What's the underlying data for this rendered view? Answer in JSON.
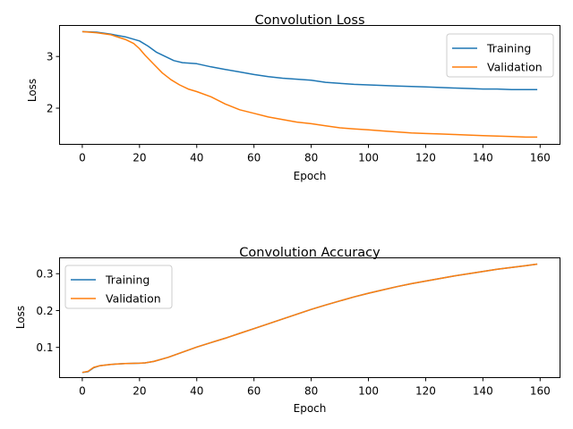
{
  "chart_data": [
    {
      "type": "line",
      "title": "Convolution Loss",
      "xlabel": "Epoch",
      "ylabel": "Loss",
      "xlim": [
        -7.95,
        166.95
      ],
      "ylim": [
        1.3,
        3.6
      ],
      "xticks": [
        0,
        20,
        40,
        60,
        80,
        100,
        120,
        140,
        160
      ],
      "yticks": [
        2,
        3
      ],
      "grid": false,
      "legend": "top-right",
      "series": [
        {
          "name": "Training",
          "color": "#1f77b4",
          "points": [
            [
              0,
              3.48
            ],
            [
              5,
              3.47
            ],
            [
              10,
              3.43
            ],
            [
              15,
              3.38
            ],
            [
              20,
              3.3
            ],
            [
              23,
              3.2
            ],
            [
              26,
              3.08
            ],
            [
              29,
              3.0
            ],
            [
              32,
              2.92
            ],
            [
              35,
              2.88
            ],
            [
              40,
              2.86
            ],
            [
              45,
              2.8
            ],
            [
              50,
              2.75
            ],
            [
              55,
              2.7
            ],
            [
              60,
              2.65
            ],
            [
              65,
              2.61
            ],
            [
              70,
              2.58
            ],
            [
              75,
              2.56
            ],
            [
              80,
              2.54
            ],
            [
              85,
              2.5
            ],
            [
              90,
              2.48
            ],
            [
              95,
              2.46
            ],
            [
              100,
              2.45
            ],
            [
              105,
              2.44
            ],
            [
              110,
              2.43
            ],
            [
              115,
              2.42
            ],
            [
              120,
              2.41
            ],
            [
              125,
              2.4
            ],
            [
              130,
              2.39
            ],
            [
              135,
              2.38
            ],
            [
              140,
              2.37
            ],
            [
              145,
              2.37
            ],
            [
              150,
              2.36
            ],
            [
              155,
              2.36
            ],
            [
              159,
              2.36
            ]
          ]
        },
        {
          "name": "Validation",
          "color": "#ff7f0e",
          "points": [
            [
              0,
              3.48
            ],
            [
              5,
              3.46
            ],
            [
              10,
              3.42
            ],
            [
              15,
              3.33
            ],
            [
              18,
              3.25
            ],
            [
              20,
              3.15
            ],
            [
              22,
              3.02
            ],
            [
              25,
              2.85
            ],
            [
              28,
              2.68
            ],
            [
              31,
              2.55
            ],
            [
              34,
              2.45
            ],
            [
              37,
              2.37
            ],
            [
              40,
              2.32
            ],
            [
              45,
              2.22
            ],
            [
              50,
              2.08
            ],
            [
              55,
              1.97
            ],
            [
              60,
              1.9
            ],
            [
              65,
              1.83
            ],
            [
              70,
              1.78
            ],
            [
              75,
              1.73
            ],
            [
              80,
              1.7
            ],
            [
              85,
              1.66
            ],
            [
              90,
              1.62
            ],
            [
              95,
              1.6
            ],
            [
              100,
              1.58
            ],
            [
              105,
              1.56
            ],
            [
              110,
              1.54
            ],
            [
              115,
              1.52
            ],
            [
              120,
              1.51
            ],
            [
              125,
              1.5
            ],
            [
              130,
              1.49
            ],
            [
              135,
              1.48
            ],
            [
              140,
              1.47
            ],
            [
              145,
              1.46
            ],
            [
              150,
              1.45
            ],
            [
              155,
              1.44
            ],
            [
              159,
              1.44
            ]
          ]
        }
      ]
    },
    {
      "type": "line",
      "title": "Convolution Accuracy",
      "xlabel": "Epoch",
      "ylabel": "Loss",
      "xlim": [
        -7.95,
        166.95
      ],
      "ylim": [
        0.018,
        0.343
      ],
      "xticks": [
        0,
        20,
        40,
        60,
        80,
        100,
        120,
        140,
        160
      ],
      "yticks": [
        0.1,
        0.2,
        0.3
      ],
      "grid": false,
      "legend": "top-left",
      "series": [
        {
          "name": "Training",
          "color": "#1f77b4",
          "points": [
            [
              0,
              0.032
            ],
            [
              2,
              0.034
            ],
            [
              4,
              0.045
            ],
            [
              6,
              0.05
            ],
            [
              10,
              0.054
            ],
            [
              15,
              0.056
            ],
            [
              20,
              0.057
            ],
            [
              22,
              0.058
            ],
            [
              25,
              0.062
            ],
            [
              30,
              0.073
            ],
            [
              35,
              0.087
            ],
            [
              40,
              0.101
            ],
            [
              45,
              0.113
            ],
            [
              50,
              0.125
            ],
            [
              55,
              0.138
            ],
            [
              60,
              0.151
            ],
            [
              65,
              0.164
            ],
            [
              70,
              0.177
            ],
            [
              75,
              0.19
            ],
            [
              80,
              0.203
            ],
            [
              85,
              0.215
            ],
            [
              90,
              0.226
            ],
            [
              95,
              0.237
            ],
            [
              100,
              0.247
            ],
            [
              105,
              0.256
            ],
            [
              110,
              0.265
            ],
            [
              115,
              0.273
            ],
            [
              120,
              0.28
            ],
            [
              125,
              0.287
            ],
            [
              130,
              0.294
            ],
            [
              135,
              0.3
            ],
            [
              140,
              0.306
            ],
            [
              145,
              0.312
            ],
            [
              150,
              0.317
            ],
            [
              155,
              0.322
            ],
            [
              159,
              0.326
            ]
          ]
        },
        {
          "name": "Validation",
          "color": "#ff7f0e",
          "points": [
            [
              0,
              0.032
            ],
            [
              2,
              0.035
            ],
            [
              4,
              0.046
            ],
            [
              6,
              0.05
            ],
            [
              10,
              0.054
            ],
            [
              15,
              0.056
            ],
            [
              20,
              0.057
            ],
            [
              22,
              0.058
            ],
            [
              25,
              0.062
            ],
            [
              30,
              0.073
            ],
            [
              35,
              0.087
            ],
            [
              40,
              0.101
            ],
            [
              45,
              0.113
            ],
            [
              50,
              0.125
            ],
            [
              55,
              0.138
            ],
            [
              60,
              0.151
            ],
            [
              65,
              0.164
            ],
            [
              70,
              0.177
            ],
            [
              75,
              0.19
            ],
            [
              80,
              0.203
            ],
            [
              85,
              0.215
            ],
            [
              90,
              0.226
            ],
            [
              95,
              0.237
            ],
            [
              100,
              0.247
            ],
            [
              105,
              0.256
            ],
            [
              110,
              0.265
            ],
            [
              115,
              0.273
            ],
            [
              120,
              0.28
            ],
            [
              125,
              0.287
            ],
            [
              130,
              0.294
            ],
            [
              135,
              0.3
            ],
            [
              140,
              0.306
            ],
            [
              145,
              0.312
            ],
            [
              150,
              0.317
            ],
            [
              155,
              0.322
            ],
            [
              159,
              0.326
            ]
          ]
        }
      ]
    }
  ]
}
